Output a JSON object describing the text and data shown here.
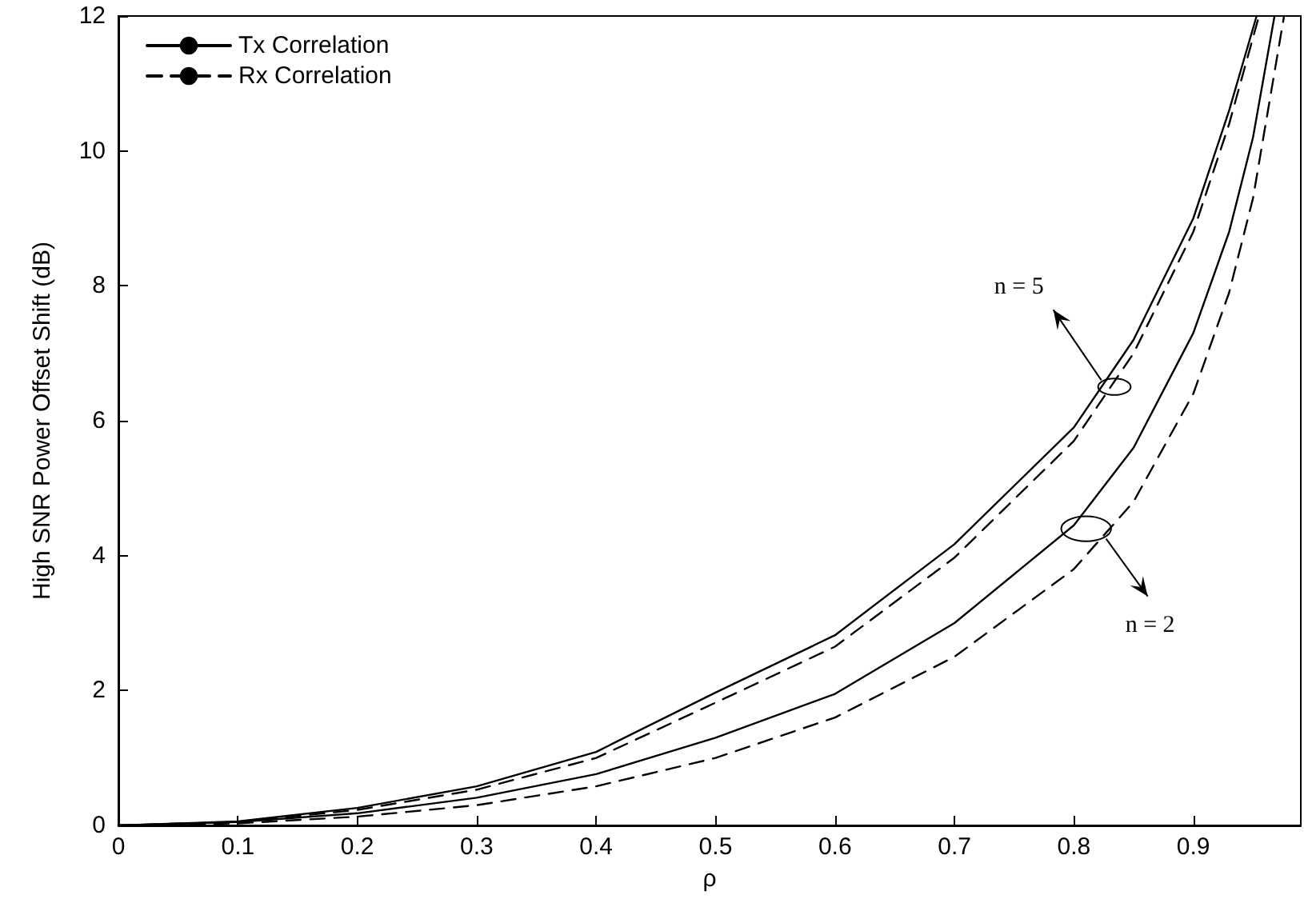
{
  "chart_data": {
    "type": "line",
    "xlabel": "ρ",
    "ylabel": "High SNR Power Offset Shift (dB)",
    "xlim": [
      0,
      0.99
    ],
    "xticks": [
      0,
      0.1,
      0.2,
      0.3,
      0.4,
      0.5,
      0.6,
      0.7,
      0.8,
      0.9
    ],
    "ylim": [
      0,
      12
    ],
    "yticks": [
      0,
      2,
      4,
      6,
      8,
      10,
      12
    ],
    "grid": false,
    "legend": "top left",
    "marker": "none",
    "series": [
      {
        "name": "Tx Correlation",
        "color": "#000000",
        "line_style": "solid",
        "x": [
          0,
          0.1,
          0.2,
          0.3,
          0.4,
          0.5,
          0.6,
          0.7,
          0.8,
          0.85,
          0.9,
          0.93,
          0.953
        ],
        "values": [
          0,
          0.06,
          0.26,
          0.58,
          1.09,
          1.97,
          2.82,
          4.17,
          5.9,
          7.2,
          9.0,
          10.6,
          12
        ]
      },
      {
        "name": "Rx Correlation",
        "color": "#000000",
        "line_style": "dashed",
        "x": [
          0,
          0.1,
          0.2,
          0.3,
          0.4,
          0.5,
          0.6,
          0.7,
          0.8,
          0.85,
          0.9,
          0.93,
          0.955
        ],
        "values": [
          0,
          0.05,
          0.23,
          0.53,
          1.0,
          1.82,
          2.65,
          3.97,
          5.7,
          7.0,
          8.8,
          10.4,
          12
        ]
      },
      {
        "color": "#000000",
        "line_style": "solid",
        "x": [
          0,
          0.1,
          0.2,
          0.3,
          0.4,
          0.5,
          0.6,
          0.7,
          0.8,
          0.85,
          0.9,
          0.93,
          0.95,
          0.968
        ],
        "values": [
          0,
          0.05,
          0.18,
          0.41,
          0.76,
          1.3,
          1.95,
          3.0,
          4.45,
          5.6,
          7.3,
          8.8,
          10.2,
          12
        ]
      },
      {
        "color": "#000000",
        "line_style": "dashed",
        "x": [
          0,
          0.1,
          0.2,
          0.3,
          0.4,
          0.5,
          0.6,
          0.7,
          0.8,
          0.85,
          0.9,
          0.93,
          0.95,
          0.976
        ],
        "values": [
          0,
          0.03,
          0.13,
          0.3,
          0.58,
          1.0,
          1.6,
          2.5,
          3.8,
          4.8,
          6.4,
          7.9,
          9.3,
          12
        ]
      }
    ],
    "annotations": [
      {
        "text": "n = 5",
        "x": 0.823,
        "y": 6.6
      },
      {
        "text": "n = 2",
        "x": 0.827,
        "y": 4.25
      }
    ]
  }
}
